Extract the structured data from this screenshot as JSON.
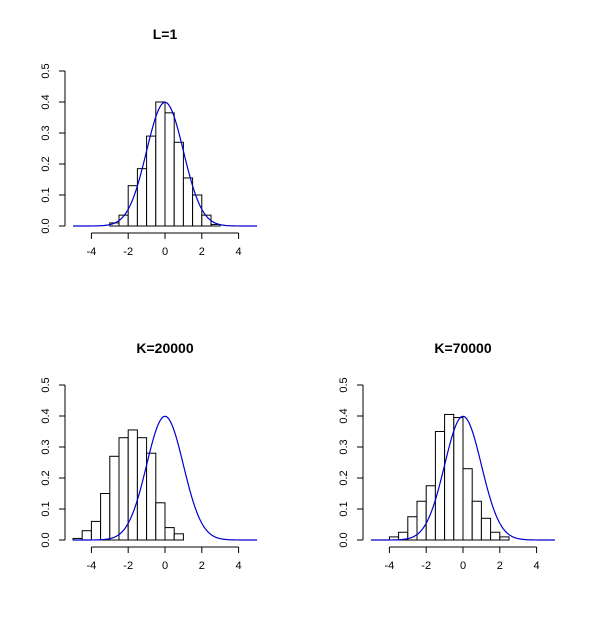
{
  "chart_data": [
    {
      "type": "histogram",
      "title": "L=1",
      "xlim": [
        -5,
        5
      ],
      "ylim": [
        0,
        0.5
      ],
      "xticks": [
        -4,
        -2,
        0,
        2,
        4
      ],
      "yticks": [
        0.0,
        0.1,
        0.2,
        0.3,
        0.4,
        0.5
      ],
      "xtick_labels": [
        "-4",
        "-2",
        "0",
        "2",
        "4"
      ],
      "ytick_labels": [
        "0.0",
        "0.1",
        "0.2",
        "0.3",
        "0.4",
        "0.5"
      ],
      "bin_width": 0.5,
      "bins": [
        {
          "x0": -3.0,
          "density": 0.01
        },
        {
          "x0": -2.5,
          "density": 0.035
        },
        {
          "x0": -2.0,
          "density": 0.13
        },
        {
          "x0": -1.5,
          "density": 0.185
        },
        {
          "x0": -1.0,
          "density": 0.29
        },
        {
          "x0": -0.5,
          "density": 0.4
        },
        {
          "x0": 0.0,
          "density": 0.365
        },
        {
          "x0": 0.5,
          "density": 0.27
        },
        {
          "x0": 1.0,
          "density": 0.155
        },
        {
          "x0": 1.5,
          "density": 0.1
        },
        {
          "x0": 2.0,
          "density": 0.035
        },
        {
          "x0": 2.5,
          "density": 0.005
        }
      ],
      "curve": {
        "type": "normal_density",
        "mean": 0,
        "sd": 1,
        "color": "#0000cc"
      },
      "bar_fill": "#ffffff",
      "bar_stroke": "#000000"
    },
    {
      "type": "histogram",
      "title": "K=20000",
      "xlim": [
        -5,
        5
      ],
      "ylim": [
        0,
        0.5
      ],
      "xticks": [
        -4,
        -2,
        0,
        2,
        4
      ],
      "yticks": [
        0.0,
        0.1,
        0.2,
        0.3,
        0.4,
        0.5
      ],
      "xtick_labels": [
        "-4",
        "-2",
        "0",
        "2",
        "4"
      ],
      "ytick_labels": [
        "0.0",
        "0.1",
        "0.2",
        "0.3",
        "0.4",
        "0.5"
      ],
      "bin_width": 0.5,
      "bins": [
        {
          "x0": -5.0,
          "density": 0.005
        },
        {
          "x0": -4.5,
          "density": 0.03
        },
        {
          "x0": -4.0,
          "density": 0.06
        },
        {
          "x0": -3.5,
          "density": 0.15
        },
        {
          "x0": -3.0,
          "density": 0.27
        },
        {
          "x0": -2.5,
          "density": 0.33
        },
        {
          "x0": -2.0,
          "density": 0.355
        },
        {
          "x0": -1.5,
          "density": 0.33
        },
        {
          "x0": -1.0,
          "density": 0.28
        },
        {
          "x0": -0.5,
          "density": 0.12
        },
        {
          "x0": 0.0,
          "density": 0.04
        },
        {
          "x0": 0.5,
          "density": 0.02
        }
      ],
      "curve": {
        "type": "normal_density",
        "mean": 0,
        "sd": 1,
        "color": "#0000cc"
      },
      "bar_fill": "#ffffff",
      "bar_stroke": "#000000"
    },
    {
      "type": "histogram",
      "title": "K=70000",
      "xlim": [
        -5,
        5
      ],
      "ylim": [
        0,
        0.5
      ],
      "xticks": [
        -4,
        -2,
        0,
        2,
        4
      ],
      "yticks": [
        0.0,
        0.1,
        0.2,
        0.3,
        0.4,
        0.5
      ],
      "xtick_labels": [
        "-4",
        "-2",
        "0",
        "2",
        "4"
      ],
      "ytick_labels": [
        "0.0",
        "0.1",
        "0.2",
        "0.3",
        "0.4",
        "0.5"
      ],
      "bin_width": 0.5,
      "bins": [
        {
          "x0": -4.0,
          "density": 0.01
        },
        {
          "x0": -3.5,
          "density": 0.025
        },
        {
          "x0": -3.0,
          "density": 0.075
        },
        {
          "x0": -2.5,
          "density": 0.125
        },
        {
          "x0": -2.0,
          "density": 0.175
        },
        {
          "x0": -1.5,
          "density": 0.35
        },
        {
          "x0": -1.0,
          "density": 0.405
        },
        {
          "x0": -0.5,
          "density": 0.395
        },
        {
          "x0": 0.0,
          "density": 0.23
        },
        {
          "x0": 0.5,
          "density": 0.125
        },
        {
          "x0": 1.0,
          "density": 0.07
        },
        {
          "x0": 1.5,
          "density": 0.025
        },
        {
          "x0": 2.0,
          "density": 0.01
        }
      ],
      "curve": {
        "type": "normal_density",
        "mean": 0,
        "sd": 1,
        "color": "#0000cc"
      },
      "bar_fill": "#ffffff",
      "bar_stroke": "#000000"
    }
  ]
}
